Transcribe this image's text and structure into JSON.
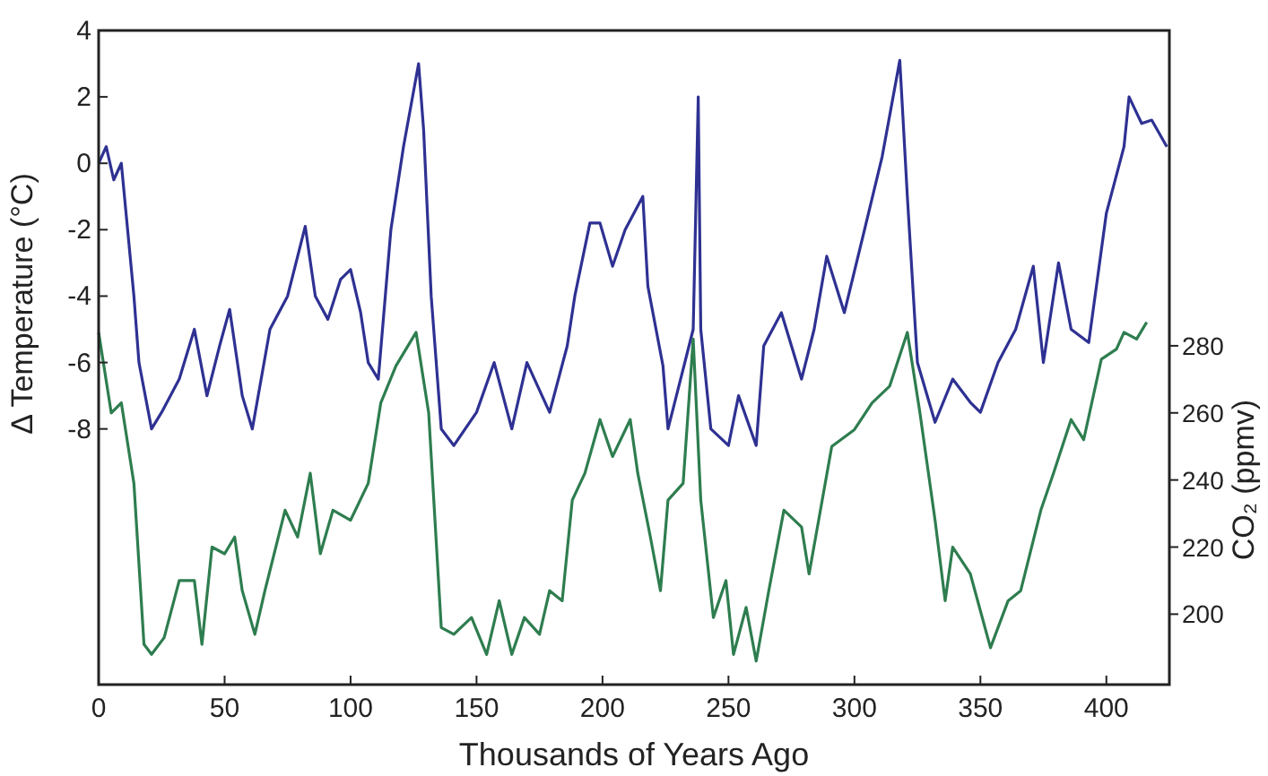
{
  "chart_data": {
    "type": "line",
    "xlabel": "Thousands of Years Ago",
    "ylabel": "Δ Temperature (°C)",
    "y2label": "CO₂ (ppmv)",
    "xlim": [
      0,
      425
    ],
    "xticks": [
      0,
      50,
      100,
      150,
      200,
      250,
      300,
      350,
      400
    ],
    "ylim": [
      -15.7,
      4
    ],
    "yticks": [
      -8,
      -6,
      -4,
      -2,
      0,
      2,
      4
    ],
    "y2lim": [
      179,
      374
    ],
    "y2ticks": [
      200,
      220,
      240,
      260,
      280
    ],
    "grid": false,
    "marker": "none",
    "line_style": "solid",
    "series": [
      {
        "color": "#2e3192",
        "x": [
          0,
          3,
          6,
          9,
          14,
          16,
          21,
          25,
          32,
          38,
          43,
          48,
          52,
          57,
          61,
          68,
          75,
          82,
          86,
          91,
          96,
          100,
          104,
          107,
          111,
          116,
          121,
          127,
          129,
          132,
          136,
          141,
          150,
          157,
          164,
          170,
          179,
          186,
          189,
          195,
          199,
          204,
          209,
          216,
          218,
          224,
          226,
          236,
          238,
          239,
          243,
          250,
          254,
          261,
          264,
          271,
          279,
          284,
          289,
          296,
          304,
          311,
          318,
          321,
          325,
          332,
          339,
          346,
          350,
          357,
          364,
          371,
          375,
          381,
          386,
          393,
          400,
          407,
          409,
          414,
          418,
          424
        ],
        "values": [
          0,
          0.5,
          -0.5,
          0,
          -4,
          -6,
          -8,
          -7.5,
          -6.5,
          -5,
          -7,
          -5.5,
          -4.4,
          -7,
          -8,
          -5,
          -4,
          -1.9,
          -4,
          -4.7,
          -3.5,
          -3.2,
          -4.5,
          -6,
          -6.5,
          -2,
          0.5,
          3,
          1,
          -4,
          -8,
          -8.5,
          -7.5,
          -6,
          -8,
          -6,
          -7.5,
          -5.5,
          -4,
          -1.8,
          -1.8,
          -3.1,
          -2,
          -1,
          -3.7,
          -6.1,
          -8,
          -5,
          2,
          -5,
          -8,
          -8.5,
          -7,
          -8.5,
          -5.5,
          -4.5,
          -6.5,
          -5,
          -2.8,
          -4.5,
          -2,
          0.2,
          3.1,
          -1,
          -6,
          -7.8,
          -6.5,
          -7.2,
          -7.5,
          -6,
          -5,
          -3.1,
          -6,
          -3,
          -5,
          -5.4,
          -1.5,
          0.5,
          2,
          1.2,
          1.3,
          0.5
        ]
      },
      {
        "color": "#2e7d4f",
        "axis": "y2",
        "x": [
          0,
          5,
          9,
          14,
          18,
          21,
          26,
          32,
          38,
          41,
          45,
          50,
          54,
          57,
          62,
          66,
          74,
          79,
          84,
          88,
          93,
          100,
          107,
          112,
          118,
          126,
          131,
          136,
          141,
          148,
          154,
          159,
          164,
          169,
          175,
          179,
          184,
          188,
          193,
          199,
          204,
          211,
          214,
          219,
          223,
          226,
          232,
          236,
          239,
          244,
          249,
          252,
          257,
          261,
          266,
          272,
          279,
          282,
          291,
          300,
          307,
          314,
          321,
          326,
          332,
          336,
          339,
          346,
          354,
          361,
          366,
          374,
          379,
          386,
          391,
          398,
          404,
          407,
          412,
          416
        ],
        "values": [
          284,
          260,
          263,
          239,
          191,
          188,
          193,
          210,
          210,
          191,
          220,
          218,
          223,
          207,
          194,
          207,
          231,
          223,
          242,
          218,
          231,
          228,
          239,
          263,
          274,
          284,
          260,
          196,
          194,
          199,
          188,
          204,
          188,
          199,
          194,
          207,
          204,
          234,
          242,
          258,
          247,
          258,
          242,
          223,
          207,
          234,
          239,
          282,
          234,
          199,
          210,
          188,
          202,
          186,
          207,
          231,
          226,
          212,
          250,
          255,
          263,
          268,
          284,
          260,
          228,
          204,
          220,
          212,
          190,
          204,
          207,
          231,
          242,
          258,
          252,
          276,
          279,
          284,
          282,
          287
        ]
      }
    ]
  }
}
